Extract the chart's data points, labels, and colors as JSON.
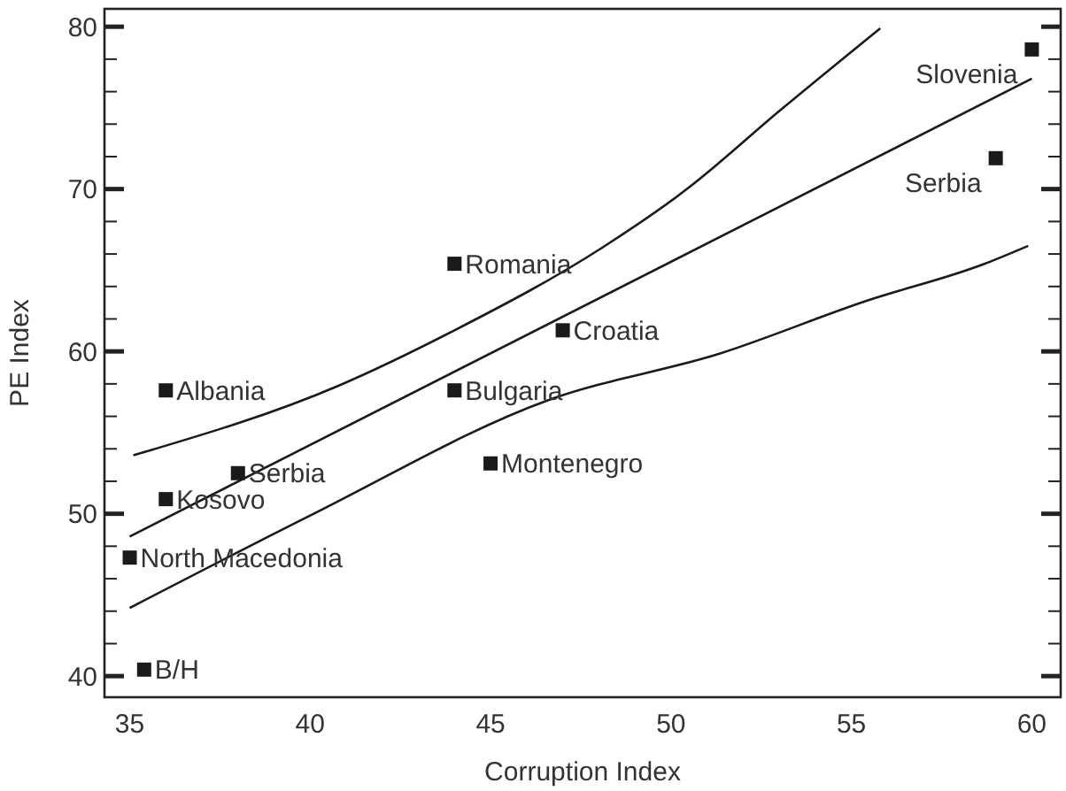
{
  "chart_data": {
    "type": "scatter",
    "xlabel": "Corruption Index",
    "ylabel": "PE Index",
    "xlim": [
      34.3,
      60.8
    ],
    "ylim": [
      38.7,
      81.1
    ],
    "xticks": [
      35,
      40,
      45,
      50,
      55,
      60
    ],
    "yticks": [
      40,
      {
        "value": 42,
        "label": null
      },
      {
        "value": 44,
        "label": null
      },
      {
        "value": 46,
        "label": null
      },
      {
        "value": 48,
        "label": null
      },
      50,
      {
        "value": 52,
        "label": null
      },
      {
        "value": 54,
        "label": null
      },
      {
        "value": 56,
        "label": null
      },
      {
        "value": 58,
        "label": null
      },
      60,
      {
        "value": 62,
        "label": null
      },
      {
        "value": 64,
        "label": null
      },
      {
        "value": 66,
        "label": null
      },
      {
        "value": 68,
        "label": null
      },
      70,
      {
        "value": 72,
        "label": null
      },
      {
        "value": 74,
        "label": null
      },
      {
        "value": 76,
        "label": null
      },
      {
        "value": 78,
        "label": null
      },
      80
    ],
    "grid": false,
    "series": [
      {
        "marker": "square",
        "color": "#1a1a1a",
        "x": [
          36,
          38,
          36,
          35,
          35.4,
          44,
          44,
          45,
          47,
          59,
          60
        ],
        "values": [
          57.6,
          52.5,
          50.9,
          47.3,
          40.4,
          65.4,
          57.6,
          53.1,
          61.3,
          71.9,
          78.6
        ]
      },
      {
        "type": "line",
        "marker": "none",
        "line_style": "solid",
        "color": "#1a1a1a",
        "x": [
          35,
          60
        ],
        "values": [
          48.6,
          76.8
        ]
      },
      {
        "type": "line",
        "marker": "none",
        "line_style": "solid",
        "color": "#1a1a1a",
        "x": [
          35.1,
          40.8,
          44,
          48.1,
          50.5,
          53,
          55.8
        ],
        "values": [
          53.6,
          57.9,
          61.3,
          66.4,
          70.1,
          74.8,
          79.9
        ]
      },
      {
        "type": "line",
        "marker": "none",
        "line_style": "solid",
        "color": "#1a1a1a",
        "x": [
          35,
          40.1,
          46.6,
          51.4,
          55.4,
          58.7,
          59.9
        ],
        "values": [
          44.2,
          50,
          57,
          59.9,
          63.1,
          65.4,
          66.5
        ]
      }
    ],
    "annotations": [
      {
        "text": "Albania",
        "x": 36,
        "y": 57.6
      },
      {
        "text": "Serbia",
        "x": 38,
        "y": 52.5
      },
      {
        "text": "Kosovo",
        "x": 36,
        "y": 50.9
      },
      {
        "text": "North Macedonia",
        "x": 35,
        "y": 47.3
      },
      {
        "text": "B/H",
        "x": 35.4,
        "y": 40.4
      },
      {
        "text": "Romania",
        "x": 44,
        "y": 65.4
      },
      {
        "text": "Bulgaria",
        "x": 44,
        "y": 57.6
      },
      {
        "text": "Montenegro",
        "x": 45,
        "y": 53.1
      },
      {
        "text": "Croatia",
        "x": 47,
        "y": 61.3
      },
      {
        "text": "Serbia",
        "x": 59,
        "y": 71.9
      },
      {
        "text": "Slovenia",
        "x": 60,
        "y": 78.6
      }
    ]
  }
}
